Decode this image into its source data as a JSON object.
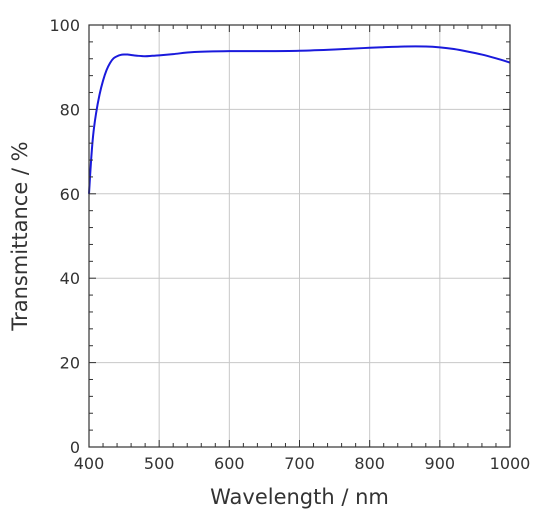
{
  "chart_data": {
    "type": "line",
    "title": "",
    "xlabel": "Wavelength / nm",
    "ylabel": "Transmittance / %",
    "xlim": [
      400,
      1000
    ],
    "ylim": [
      0,
      100
    ],
    "grid": true,
    "x_ticks": [
      400,
      500,
      600,
      700,
      800,
      900,
      1000
    ],
    "y_ticks": [
      0,
      20,
      40,
      60,
      80,
      100
    ],
    "x_tick_labels": [
      "400",
      "500",
      "600",
      "700",
      "800",
      "900",
      "1000"
    ],
    "y_tick_labels": [
      "0",
      "20",
      "40",
      "60",
      "80",
      "100"
    ],
    "series": [
      {
        "color": "#1a1adc",
        "x": [
          400,
          403,
          406,
          410,
          415,
          420,
          425,
          430,
          435,
          440,
          445,
          450,
          455,
          460,
          470,
          480,
          490,
          500,
          520,
          550,
          600,
          650,
          700,
          750,
          800,
          850,
          880,
          900,
          920,
          940,
          960,
          980,
          1000
        ],
        "y": [
          60,
          68,
          74,
          79,
          83.5,
          86.8,
          89.3,
          91.0,
          92.1,
          92.6,
          92.9,
          93.0,
          93.0,
          92.9,
          92.7,
          92.6,
          92.7,
          92.8,
          93.1,
          93.6,
          93.8,
          93.8,
          93.9,
          94.2,
          94.6,
          94.9,
          94.9,
          94.7,
          94.3,
          93.7,
          93.0,
          92.1,
          91.1
        ]
      }
    ]
  }
}
